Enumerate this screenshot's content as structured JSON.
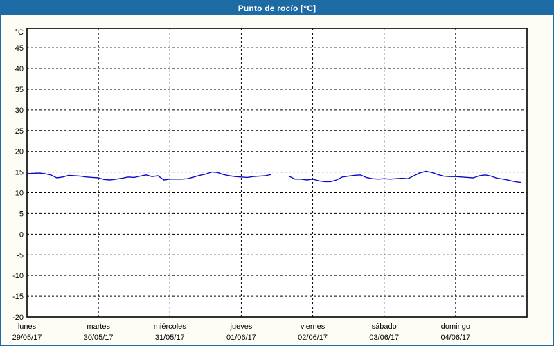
{
  "header": {
    "title": "Punto de rocío [°C]"
  },
  "colors": {
    "frame_blue": "#1c6ba4",
    "title_text": "#ffffff",
    "outer_background": "#fdfdf6",
    "plot_background": "#ffffff",
    "grid_black": "#000000",
    "line_blue": "#0a0ac8"
  },
  "chart_data": {
    "type": "line",
    "title": "Punto de rocío [°C]",
    "y_unit": "°C",
    "ylabel": "°C",
    "xlabel": "",
    "ylim": [
      -20,
      49.7
    ],
    "yticks": [
      45,
      40,
      35,
      30,
      25,
      20,
      15,
      10,
      5,
      0,
      -5,
      -10,
      -15,
      -20
    ],
    "grid": "dashed-both-axes",
    "legend_position": "none",
    "line_color": "#0a0ac8",
    "days": [
      {
        "name": "lunes",
        "date": "29/05/17"
      },
      {
        "name": "martes",
        "date": "30/05/17"
      },
      {
        "name": "miércoles",
        "date": "31/05/17"
      },
      {
        "name": "jueves",
        "date": "01/06/17"
      },
      {
        "name": "viernes",
        "date": "02/06/17"
      },
      {
        "name": "sábado",
        "date": "03/06/17"
      },
      {
        "name": "domingo",
        "date": "04/06/17"
      }
    ],
    "sample_interval_hours": 2,
    "note": "values are dew point °C every 2 h from lunes 29/05/17 00:00; null = data gap on jueves midday",
    "series": [
      {
        "name": "Punto de rocío",
        "values": [
          14.6,
          14.7,
          14.75,
          14.6,
          14.3,
          13.6,
          13.8,
          14.2,
          14.1,
          14.0,
          13.8,
          13.7,
          13.6,
          13.2,
          13.1,
          13.3,
          13.5,
          13.8,
          13.7,
          14.0,
          14.3,
          13.9,
          14.1,
          13.1,
          13.3,
          13.3,
          13.3,
          13.4,
          13.8,
          14.2,
          14.5,
          15.0,
          14.9,
          14.4,
          14.1,
          13.9,
          13.8,
          13.7,
          13.9,
          14.0,
          14.1,
          14.4,
          null,
          null,
          14.0,
          13.3,
          13.3,
          13.1,
          13.3,
          12.9,
          12.7,
          12.7,
          13.1,
          13.8,
          14.0,
          14.2,
          14.3,
          13.7,
          13.4,
          13.3,
          13.4,
          13.3,
          13.4,
          13.5,
          13.4,
          14.1,
          14.8,
          15.2,
          14.9,
          14.4,
          14.0,
          13.9,
          13.9,
          13.8,
          13.7,
          13.6,
          14.1,
          14.3,
          14.0,
          13.5,
          13.3,
          13.0,
          12.7,
          12.5
        ]
      }
    ]
  }
}
